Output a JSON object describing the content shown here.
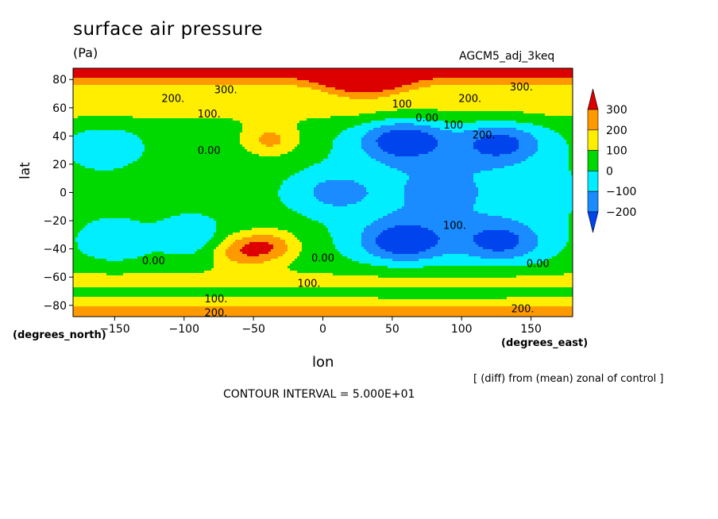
{
  "chart_data": {
    "type": "heatmap",
    "title": "surface air pressure",
    "units": "(Pa)",
    "experiment": "AGCM5_adj_3keq",
    "xlabel": "lon",
    "xlabel_unit": "(degrees_east)",
    "ylabel": "lat",
    "ylabel_unit": "(degrees_north)",
    "xlim": [
      -180,
      180
    ],
    "ylim": [
      -88,
      88
    ],
    "x_ticks": [
      -150,
      -100,
      -50,
      0,
      50,
      100,
      150
    ],
    "y_ticks": [
      -80,
      -60,
      -40,
      -20,
      0,
      20,
      40,
      60,
      80
    ],
    "note": "[ (diff) from (mean) zonal of control ]",
    "contour_interval_text": "CONTOUR INTERVAL = 5.000E+01",
    "colorbar": {
      "labels": [
        "300",
        "200",
        "100",
        "0",
        "−100",
        "−200"
      ],
      "levels": [
        300,
        200,
        100,
        0,
        -100,
        -200
      ],
      "colors": [
        "#dd0000",
        "#ff9900",
        "#ffee00",
        "#00d900",
        "#00eeff",
        "#1a8cff",
        "#0044ee"
      ]
    },
    "contour_labels": [
      {
        "text": "300.",
        "lon": -70,
        "lat": 73
      },
      {
        "text": "300.",
        "lon": 143,
        "lat": 75
      },
      {
        "text": "200.",
        "lon": -108,
        "lat": 67
      },
      {
        "text": "200.",
        "lon": 106,
        "lat": 67
      },
      {
        "text": "200.",
        "lon": 144,
        "lat": -82
      },
      {
        "text": "200.",
        "lon": -77,
        "lat": -85
      },
      {
        "text": "100.",
        "lon": -82,
        "lat": 56
      },
      {
        "text": "100",
        "lon": 57,
        "lat": 63
      },
      {
        "text": "100",
        "lon": 94,
        "lat": 48
      },
      {
        "text": "100.",
        "lon": -77,
        "lat": -75
      },
      {
        "text": "100.",
        "lon": -10,
        "lat": -64
      },
      {
        "text": "100.",
        "lon": 95,
        "lat": -23
      },
      {
        "text": "0.00",
        "lon": 75,
        "lat": 53
      },
      {
        "text": "0.00",
        "lon": -82,
        "lat": 30
      },
      {
        "text": "0.00",
        "lon": -122,
        "lat": -48
      },
      {
        "text": "0.00",
        "lon": 0,
        "lat": -46
      },
      {
        "text": "0.00",
        "lon": 155,
        "lat": -50
      },
      {
        "text": "200.",
        "lon": 116,
        "lat": 41
      }
    ],
    "anomaly_centers": [
      {
        "lon": 58,
        "lat": 37,
        "value": -300
      },
      {
        "lon": 128,
        "lat": 35,
        "value": -250
      },
      {
        "lon": 58,
        "lat": -35,
        "value": -300
      },
      {
        "lon": 128,
        "lat": -35,
        "value": -250
      },
      {
        "lon": 8,
        "lat": 0,
        "value": -150
      },
      {
        "lon": -157,
        "lat": 33,
        "value": -120
      },
      {
        "lon": -150,
        "lat": -35,
        "value": -120
      },
      {
        "lon": -95,
        "lat": -32,
        "value": -110
      },
      {
        "lon": -38,
        "lat": 37,
        "value": 200
      },
      {
        "lon": -60,
        "lat": -42,
        "value": 200
      },
      {
        "lon": -38,
        "lat": -38,
        "value": 220
      },
      {
        "lon": 30,
        "lat": 82,
        "value": 350
      },
      {
        "lon": -58,
        "lat": 20,
        "value": 0
      },
      {
        "lon": -118,
        "lat": 5,
        "value": 30
      }
    ]
  }
}
